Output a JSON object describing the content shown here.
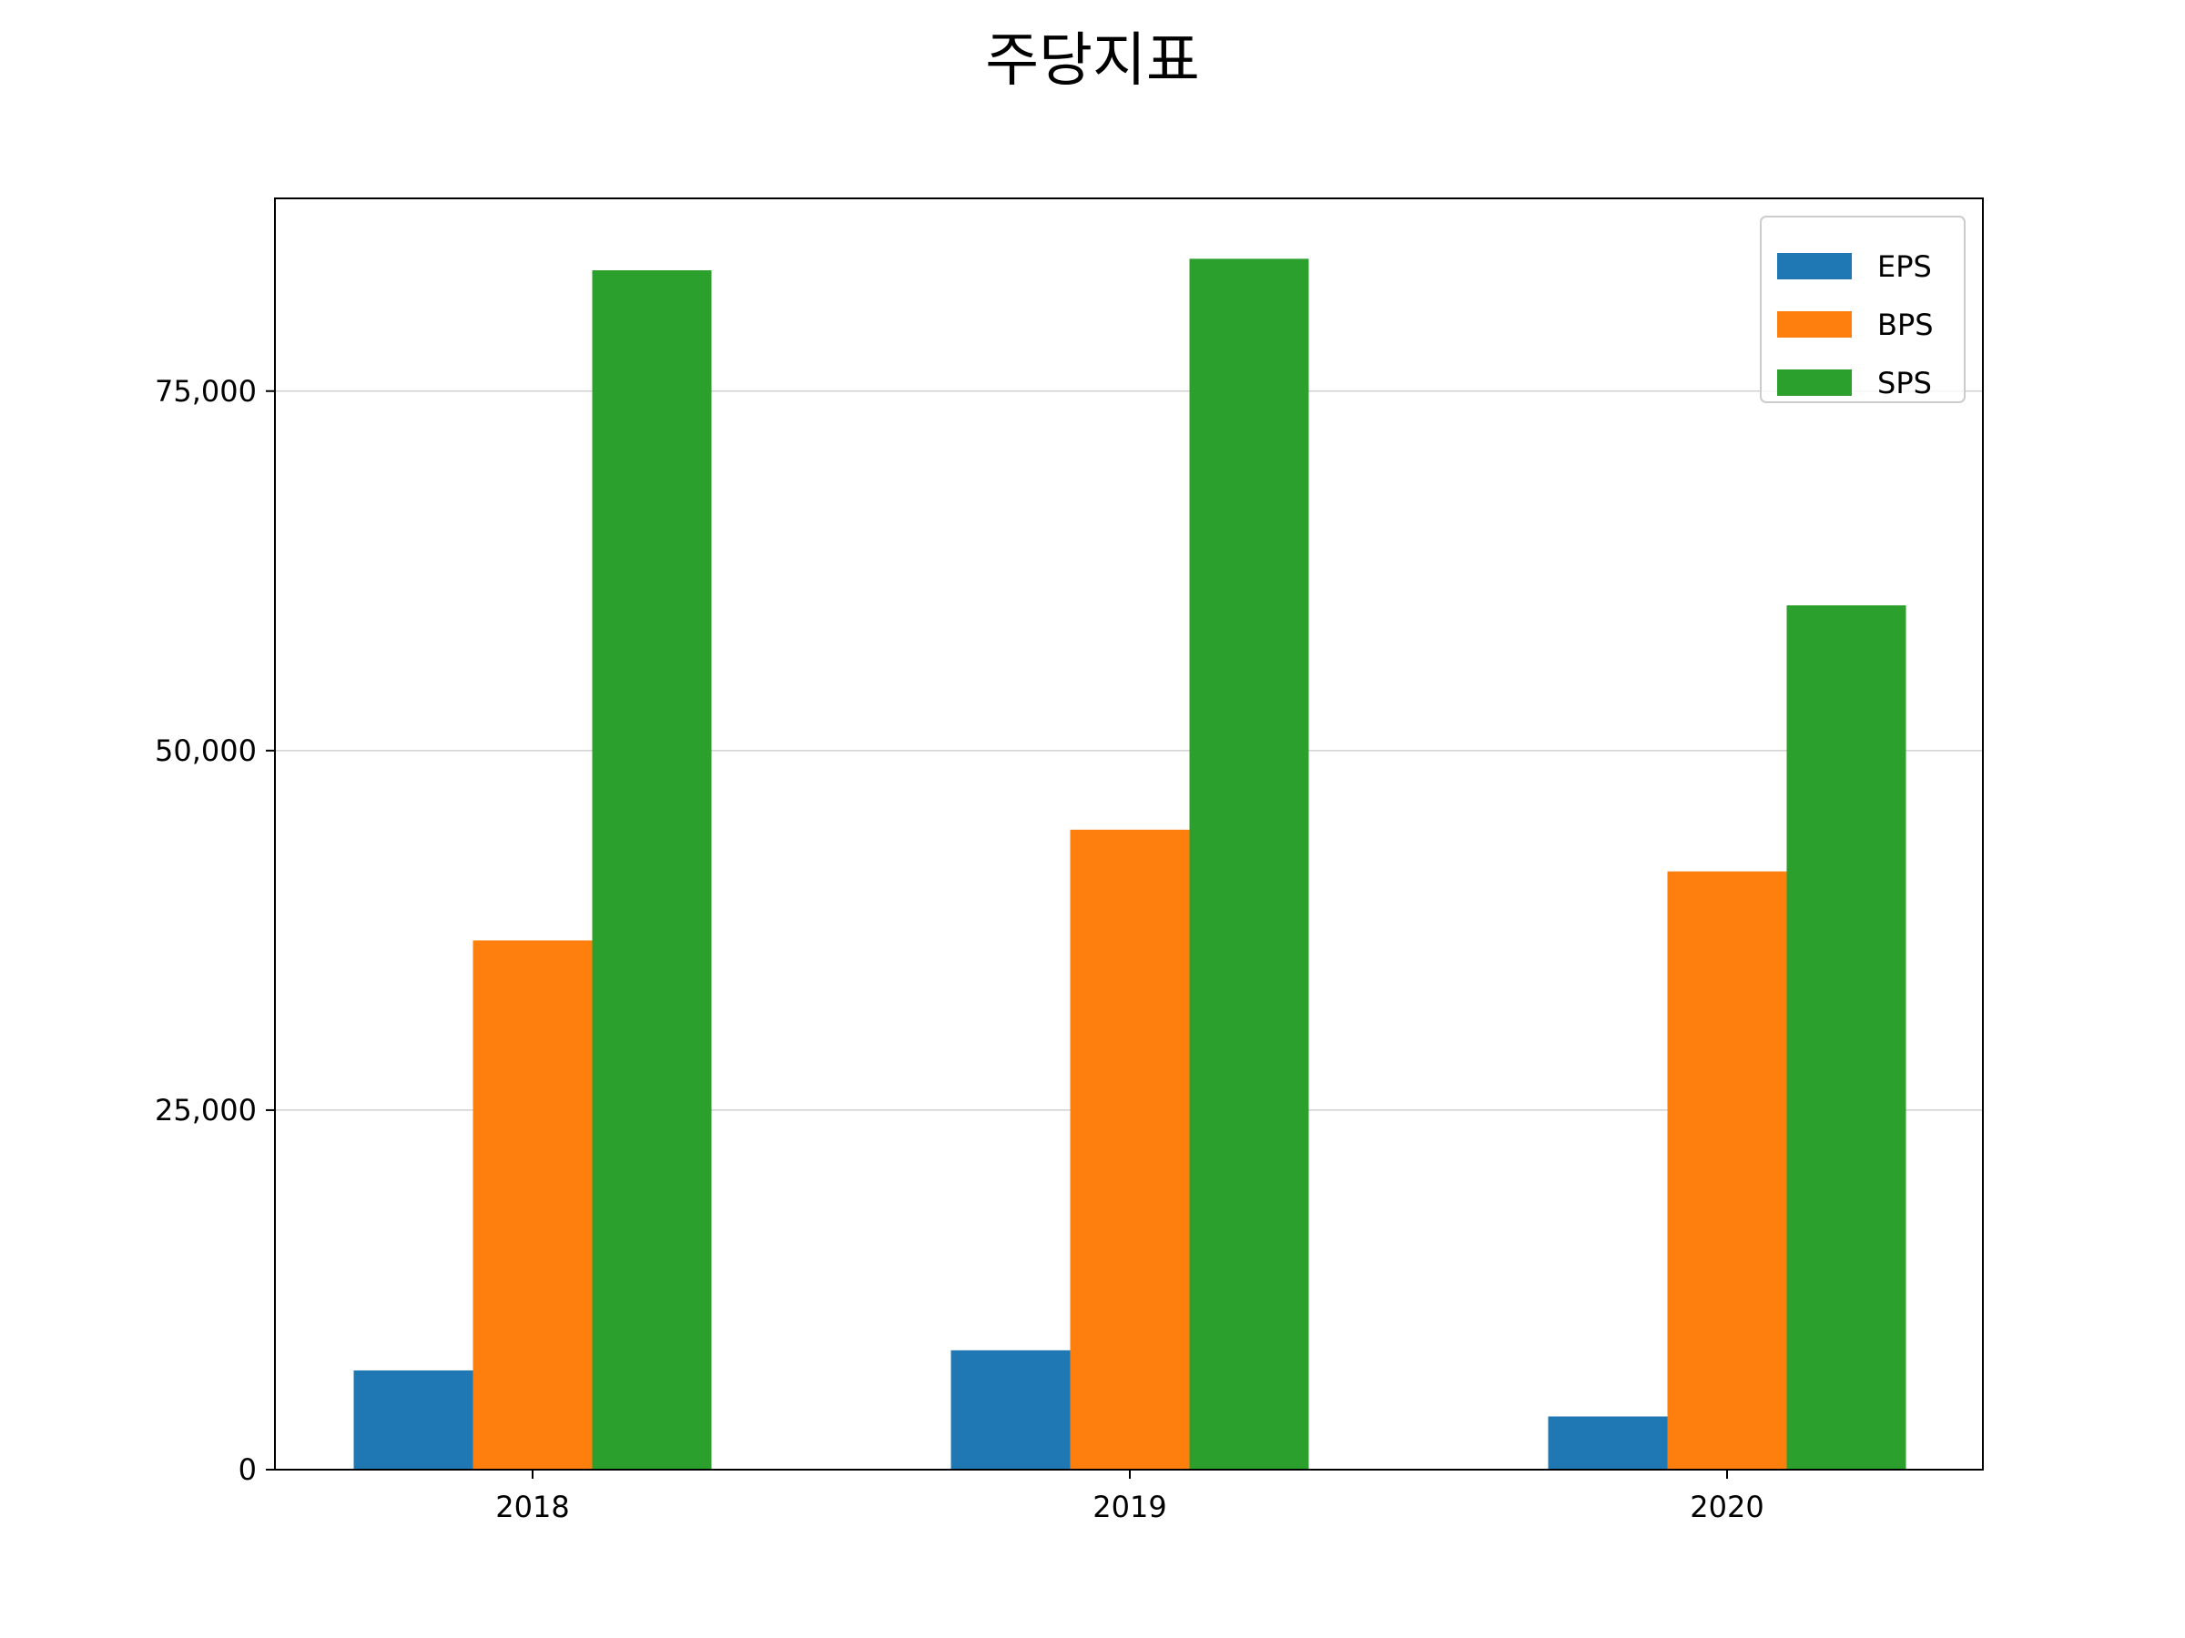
{
  "chart_data": {
    "type": "bar",
    "title": "주당지표",
    "xlabel": "",
    "ylabel": "",
    "categories": [
      "2018",
      "2019",
      "2020"
    ],
    "series": [
      {
        "name": "EPS",
        "color": "#1f77b4",
        "values": [
          6900,
          8300,
          3700
        ]
      },
      {
        "name": "BPS",
        "color": "#ff7f0e",
        "values": [
          36800,
          44500,
          41600
        ]
      },
      {
        "name": "SPS",
        "color": "#2ca02c",
        "values": [
          83400,
          84200,
          60100
        ]
      }
    ],
    "ylim": [
      0,
      88400
    ],
    "yticks": [
      0,
      25000,
      50000,
      75000
    ],
    "ytick_labels": [
      "0",
      "25,000",
      "50,000",
      "75,000"
    ],
    "grid": "y",
    "legend_position": "top-right"
  }
}
